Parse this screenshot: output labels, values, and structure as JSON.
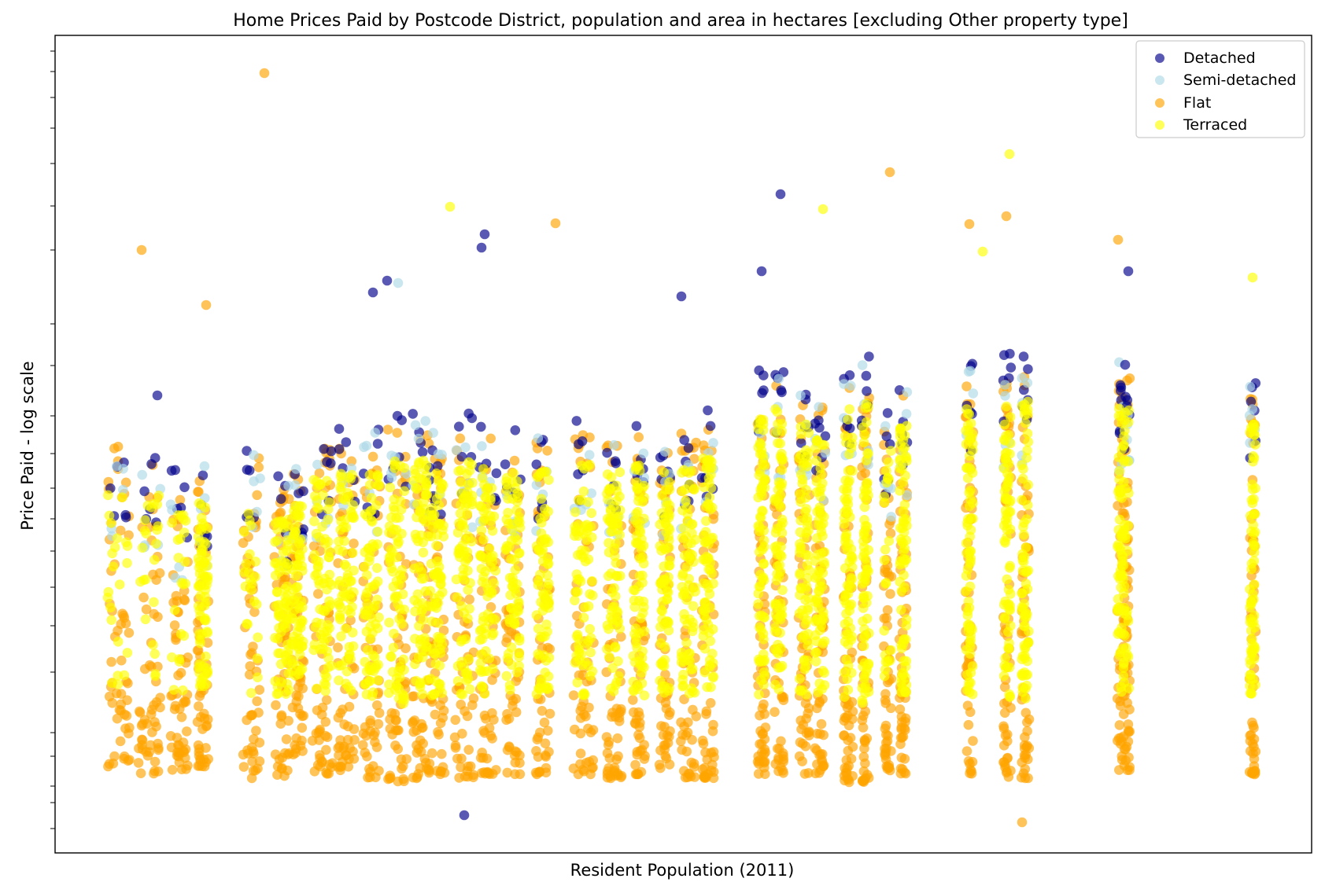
{
  "chart_data": {
    "type": "scatter",
    "title": "Home Prices Paid by Postcode District, population and area in hectares [excluding Other property type]",
    "xlabel": "Resident Population (2011)",
    "ylabel": "Price Paid - log scale",
    "y_scale": "log",
    "x_tick_labels_shown": false,
    "y_tick_labels_shown": false,
    "grid": false,
    "legend_position": "top-right",
    "series": [
      {
        "name": "Detached",
        "color": "#00008b",
        "alpha": 0.65
      },
      {
        "name": "Semi-detached",
        "color": "#add8e6",
        "alpha": 0.65
      },
      {
        "name": "Flat",
        "color": "#ffa500",
        "alpha": 0.65
      },
      {
        "name": "Terraced",
        "color": "#ffff00",
        "alpha": 0.65
      }
    ]
  }
}
